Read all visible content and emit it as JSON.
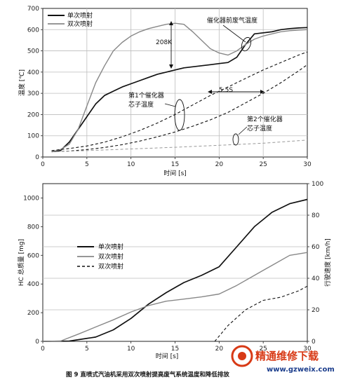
{
  "chart_data": [
    {
      "type": "line",
      "title": "",
      "xlabel": "时间 [s]",
      "ylabel": "温度 [℃]",
      "xlim": [
        0,
        30
      ],
      "ylim": [
        0,
        700
      ],
      "xticks": [
        0,
        5,
        10,
        15,
        20,
        25,
        30
      ],
      "yticks": [
        0,
        100,
        200,
        300,
        400,
        500,
        600,
        700
      ],
      "legend": {
        "placement": "top-left",
        "entries": [
          "单次喷射",
          "双次喷射"
        ]
      },
      "annotations": [
        "催化器前废气温度",
        "208K",
        "5.5S",
        "第1个催化器",
        "芯子温度",
        "第2个催化器",
        "芯子温度"
      ],
      "series": [
        {
          "name": "单次喷射",
          "role": "exhaust",
          "color": "#111111",
          "style": "solid",
          "width": 1.7,
          "x": [
            1,
            2,
            3,
            4,
            5,
            6,
            7,
            8,
            9,
            10,
            11,
            12,
            13,
            14,
            15,
            16,
            17,
            18,
            19,
            20,
            21,
            22,
            23,
            24,
            25,
            26,
            27,
            28,
            29,
            30
          ],
          "y": [
            25,
            30,
            70,
            130,
            190,
            250,
            290,
            310,
            330,
            345,
            360,
            375,
            390,
            400,
            410,
            420,
            425,
            430,
            435,
            440,
            445,
            470,
            530,
            580,
            585,
            590,
            600,
            605,
            608,
            610
          ]
        },
        {
          "name": "双次喷射",
          "role": "exhaust",
          "color": "#888888",
          "style": "solid",
          "width": 1.4,
          "x": [
            1,
            2,
            3,
            4,
            5,
            6,
            7,
            8,
            9,
            10,
            11,
            12,
            13,
            14,
            15,
            16,
            17,
            18,
            19,
            20,
            21,
            22,
            23,
            24,
            25,
            26,
            27,
            28,
            29,
            30
          ],
          "y": [
            25,
            35,
            60,
            130,
            240,
            350,
            430,
            500,
            540,
            570,
            590,
            605,
            615,
            625,
            630,
            625,
            590,
            550,
            510,
            490,
            480,
            500,
            530,
            555,
            570,
            580,
            590,
            595,
            598,
            600
          ]
        },
        {
          "name": "",
          "role": "cat1-single",
          "color": "#111111",
          "style": "dashed",
          "width": 1.1,
          "x": [
            1,
            3,
            5,
            7,
            9,
            11,
            13,
            15,
            17,
            19,
            21,
            23,
            25,
            27,
            29,
            30
          ],
          "y": [
            30,
            40,
            52,
            70,
            95,
            125,
            160,
            200,
            245,
            290,
            330,
            370,
            410,
            445,
            480,
            495
          ]
        },
        {
          "name": "",
          "role": "cat1-double",
          "color": "#111111",
          "style": "dashed",
          "width": 1.1,
          "x": [
            1,
            3,
            5,
            7,
            9,
            11,
            13,
            15,
            17,
            19,
            21,
            23,
            25,
            27,
            29,
            30
          ],
          "y": [
            25,
            28,
            35,
            45,
            58,
            75,
            95,
            118,
            145,
            175,
            210,
            255,
            300,
            350,
            405,
            435
          ]
        },
        {
          "name": "",
          "role": "cat2",
          "color": "#999999",
          "style": "dashed",
          "width": 1.0,
          "x": [
            1,
            5,
            10,
            15,
            20,
            25,
            30
          ],
          "y": [
            25,
            30,
            38,
            46,
            55,
            65,
            80
          ]
        }
      ]
    },
    {
      "type": "line",
      "title": "",
      "xlabel": "时间 [s]",
      "ylabel": "HC 总质量 [mg]",
      "ylabel_right": "行驶速度 [km/h]",
      "xlim": [
        0,
        30
      ],
      "ylim": [
        0,
        1100
      ],
      "ylim_right": [
        0,
        100
      ],
      "xticks": [
        0,
        5,
        10,
        15,
        20,
        25,
        30
      ],
      "yticks": [
        0,
        200,
        400,
        600,
        800,
        1000
      ],
      "yticks_right": [
        0,
        20,
        40,
        60,
        80,
        100
      ],
      "legend": {
        "placement": "center-left",
        "entries": [
          "单次喷射",
          "双次喷射",
          "双次喷射"
        ]
      },
      "series": [
        {
          "name": "单次喷射",
          "axis": "left",
          "color": "#111111",
          "style": "solid",
          "width": 1.7,
          "x": [
            0,
            3,
            6,
            8,
            10,
            12,
            14,
            16,
            18,
            20,
            22,
            24,
            26,
            28,
            30
          ],
          "y": [
            0,
            2,
            30,
            80,
            160,
            260,
            340,
            410,
            460,
            520,
            660,
            800,
            900,
            960,
            990
          ]
        },
        {
          "name": "双次喷射",
          "axis": "left",
          "color": "#888888",
          "style": "solid",
          "width": 1.4,
          "x": [
            0,
            2,
            4,
            6,
            8,
            10,
            12,
            14,
            16,
            18,
            20,
            22,
            24,
            26,
            28,
            30
          ],
          "y": [
            0,
            2,
            50,
            100,
            150,
            205,
            250,
            280,
            295,
            310,
            330,
            390,
            460,
            530,
            600,
            620
          ]
        },
        {
          "name": "双次喷射",
          "axis": "right",
          "color": "#111111",
          "style": "dashed",
          "width": 1.1,
          "x": [
            19.5,
            21,
            23,
            25,
            27,
            29,
            30
          ],
          "y": [
            0,
            10,
            20,
            26,
            28,
            32,
            35
          ]
        }
      ]
    }
  ],
  "caption": "图 9  直喷式汽油机采用双次喷射提高废气系统温度和降低排放",
  "watermark": {
    "logo_text": "精通维修下载",
    "url": "www.gzweix.com",
    "accent_color": "#d83a16"
  }
}
